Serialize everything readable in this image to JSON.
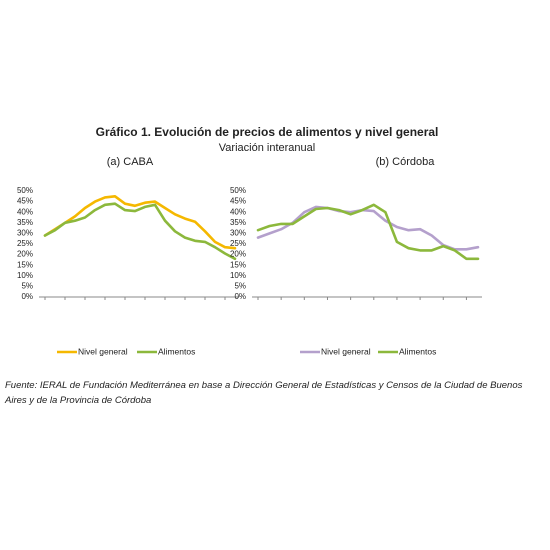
{
  "title": "Gráfico 1. Evolución de precios de alimentos y nivel general",
  "subtitle": "Variación interanual",
  "source": "Fuente: IERAL de Fundación Mediterránea en base a Dirección General de Estadísticas y Censos de la Ciudad de Buenos Aires y de la Provincia de Córdoba",
  "chart_data": [
    {
      "type": "line",
      "title": "(a) CABA",
      "categories": [
        null,
        null,
        null,
        null,
        null,
        null,
        null,
        null,
        null,
        null,
        null,
        null,
        null,
        null,
        null,
        null,
        null,
        null,
        null,
        null
      ],
      "series": [
        {
          "name": "Nivel general",
          "color": "#f5b800",
          "values": [
            29,
            32,
            35,
            38,
            42,
            45,
            47,
            47.5,
            44,
            43,
            44.5,
            45,
            42,
            39,
            37,
            35.5,
            31,
            26,
            23.5,
            23
          ]
        },
        {
          "name": "Alimentos",
          "color": "#8cb83c",
          "values": [
            29,
            31.5,
            35,
            36,
            37.5,
            41,
            43.5,
            44,
            41,
            40.5,
            42.5,
            43.5,
            36,
            31,
            28,
            26.5,
            26,
            23.5,
            20.5,
            18
          ]
        }
      ],
      "ylim": [
        0,
        50
      ],
      "yticks": [
        {
          "value": 0,
          "label": "0%"
        },
        {
          "value": 5,
          "label": "5%"
        },
        {
          "value": 10,
          "label": "10%"
        },
        {
          "value": 15,
          "label": "15%"
        },
        {
          "value": 20,
          "label": "20%"
        },
        {
          "value": 25,
          "label": "25%"
        },
        {
          "value": 30,
          "label": "30%"
        },
        {
          "value": 35,
          "label": "35%"
        },
        {
          "value": 40,
          "label": "40%"
        },
        {
          "value": 45,
          "label": "45%"
        },
        {
          "value": 50,
          "label": "50%"
        }
      ],
      "legend": "bottom"
    },
    {
      "type": "line",
      "title": "(b) Córdoba",
      "categories": [
        null,
        null,
        null,
        null,
        null,
        null,
        null,
        null,
        null,
        null,
        null,
        null,
        null,
        null,
        null,
        null,
        null,
        null,
        null,
        null
      ],
      "series": [
        {
          "name": "Nivel general",
          "color": "#b4a0cc",
          "values": [
            28,
            30,
            32,
            35,
            40,
            42.5,
            42,
            40.5,
            40,
            41,
            40.5,
            36,
            33,
            31.5,
            32,
            29,
            24.5,
            22.5,
            22.5,
            23.5
          ]
        },
        {
          "name": "Alimentos",
          "color": "#8cb83c",
          "values": [
            31.5,
            33.5,
            34.5,
            34.5,
            38,
            41.5,
            42,
            41,
            39,
            41,
            43.5,
            40,
            26,
            23,
            22,
            22,
            24,
            22,
            18,
            18
          ]
        }
      ],
      "ylim": [
        0,
        50
      ],
      "yticks": [
        {
          "value": 0,
          "label": "0%"
        },
        {
          "value": 5,
          "label": "5%"
        },
        {
          "value": 10,
          "label": "10%"
        },
        {
          "value": 15,
          "label": "15%"
        },
        {
          "value": 20,
          "label": "20%"
        },
        {
          "value": 25,
          "label": "25%"
        },
        {
          "value": 30,
          "label": "30%"
        },
        {
          "value": 35,
          "label": "35%"
        },
        {
          "value": 40,
          "label": "40%"
        },
        {
          "value": 45,
          "label": "45%"
        },
        {
          "value": 50,
          "label": "50%"
        }
      ],
      "legend": "bottom"
    }
  ]
}
